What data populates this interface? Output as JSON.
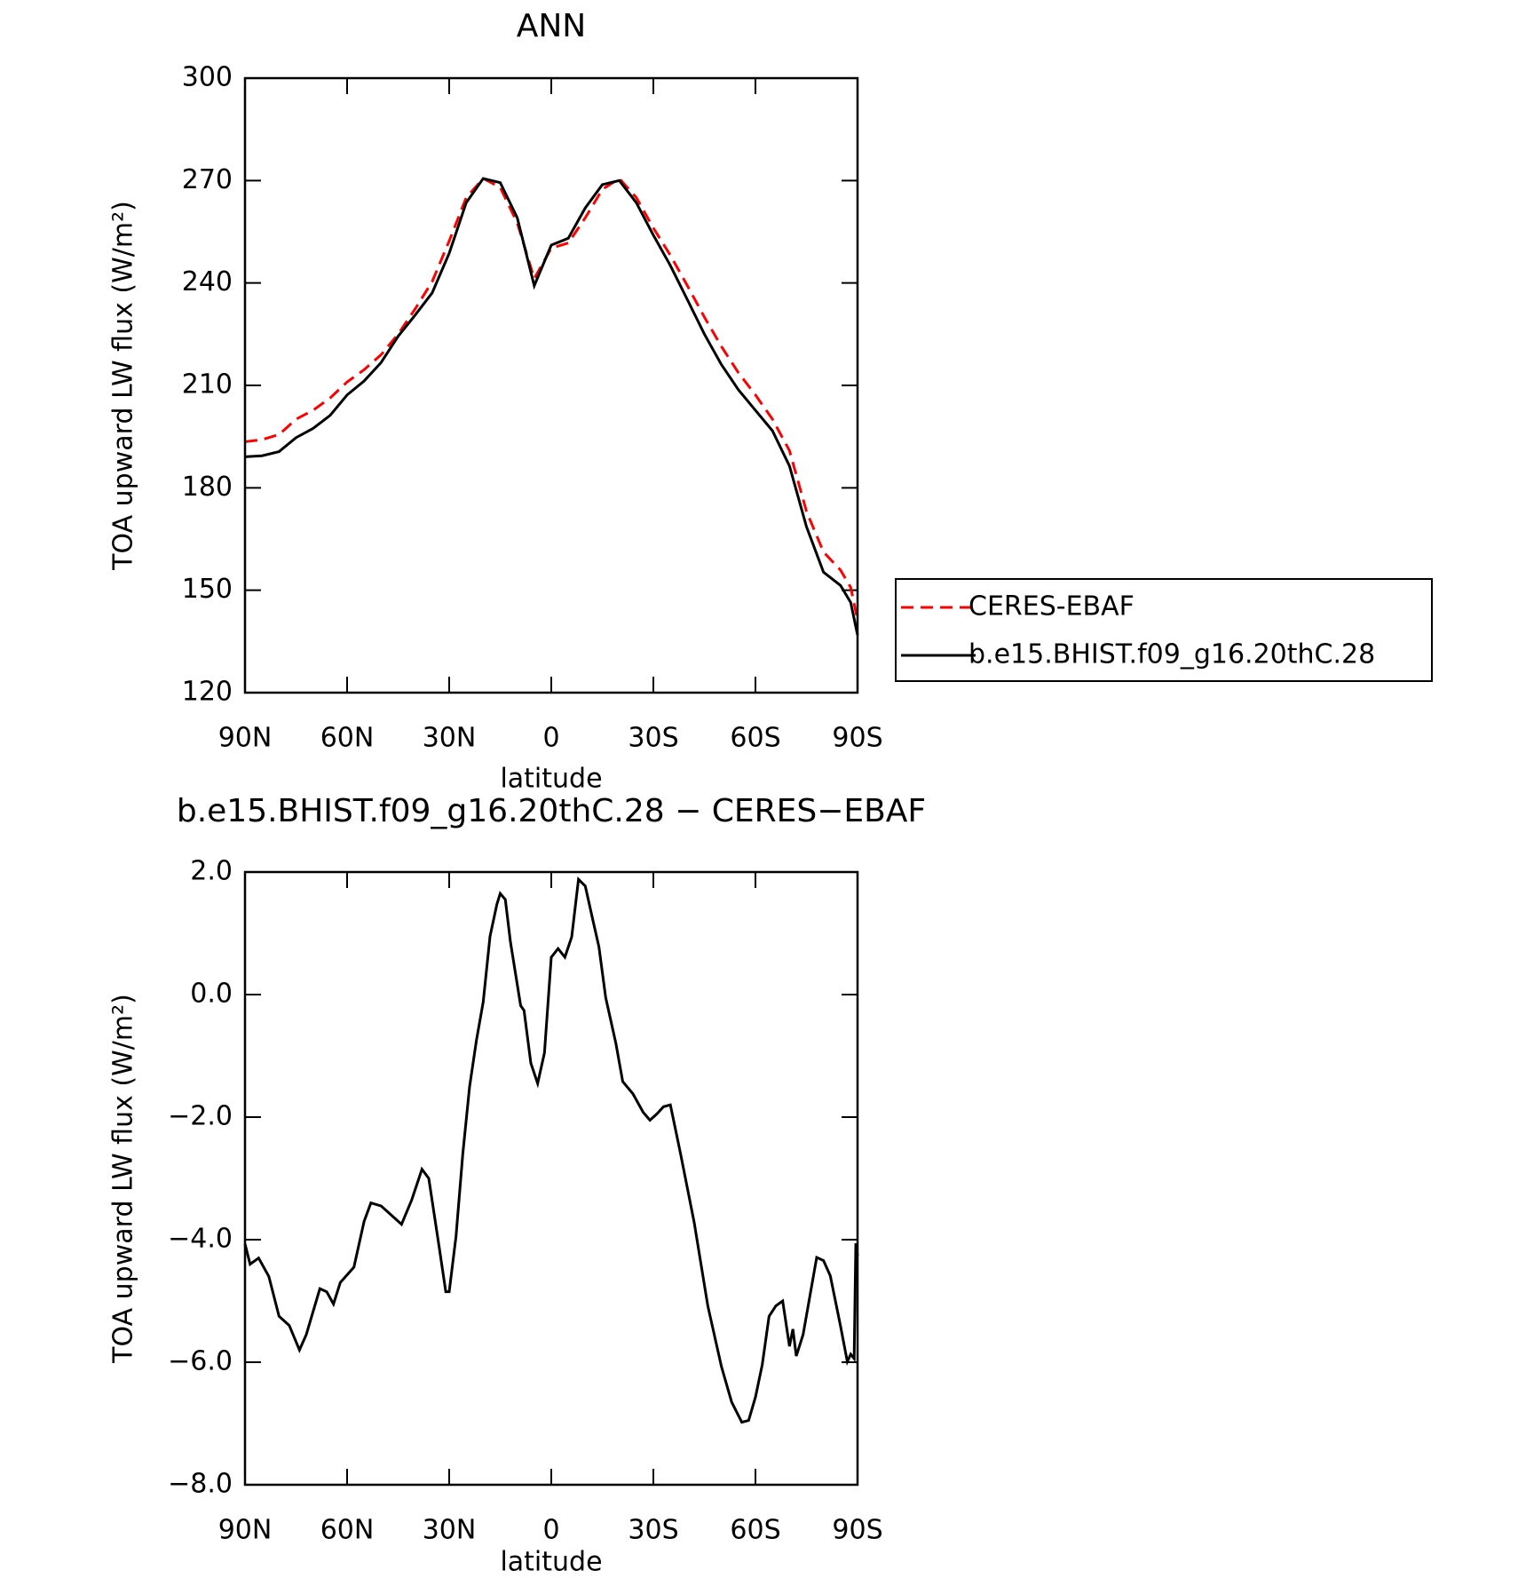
{
  "chart_data": [
    {
      "type": "line",
      "title": "ANN",
      "xlabel": "latitude",
      "ylabel": "TOA upward LW flux (W/m²)",
      "x": [
        90,
        85,
        80,
        75,
        70,
        65,
        60,
        55,
        50,
        45,
        40,
        35,
        30,
        25,
        20,
        15,
        10,
        5,
        0,
        -5,
        -10,
        -15,
        -20,
        -25,
        -30,
        -35,
        -40,
        -45,
        -50,
        -55,
        -60,
        -65,
        -70,
        -75,
        -80,
        -85,
        -88,
        -90
      ],
      "series": [
        {
          "name": "CERES-EBAF",
          "color": "#ff0000",
          "linestyle": "dashed",
          "values": [
            193.5,
            194.1,
            195.6,
            200.1,
            202.7,
            206.3,
            211.0,
            214.6,
            219.0,
            225.0,
            232.4,
            240.4,
            252.3,
            265.0,
            270.6,
            268.0,
            257.6,
            241.3,
            250.2,
            251.7,
            259.1,
            267.4,
            270.6,
            265.0,
            256.1,
            248.1,
            239.2,
            230.0,
            221.4,
            213.7,
            207.2,
            200.1,
            190.9,
            173.1,
            161.2,
            155.9,
            150.8,
            141.3
          ]
        },
        {
          "name": "b.e15.BHIST.f09_g16.20thC.28",
          "color": "#000000",
          "linestyle": "solid",
          "values": [
            189.1,
            189.4,
            190.6,
            194.7,
            197.4,
            201.2,
            207.2,
            211.3,
            216.7,
            224.4,
            230.6,
            237.1,
            248.7,
            263.5,
            270.6,
            269.4,
            259.1,
            239.2,
            251.1,
            253.1,
            262.0,
            268.8,
            270.0,
            263.5,
            254.0,
            245.1,
            235.1,
            225.0,
            216.1,
            208.7,
            202.7,
            196.7,
            186.4,
            168.6,
            155.3,
            151.4,
            146.4,
            136.9
          ]
        }
      ],
      "xlim": [
        90,
        -90
      ],
      "xticks": [
        {
          "value": 90,
          "label": "90N"
        },
        {
          "value": 60,
          "label": "60N"
        },
        {
          "value": 30,
          "label": "30N"
        },
        0,
        {
          "value": -30,
          "label": "30S"
        },
        {
          "value": -60,
          "label": "60S"
        },
        {
          "value": -90,
          "label": "90S"
        }
      ],
      "ylim": [
        120,
        300
      ],
      "yticks": [
        120,
        150,
        180,
        210,
        240,
        270,
        300
      ],
      "legend": "right"
    },
    {
      "type": "line",
      "title": "b.e15.BHIST.f09_g16.20thC.28 − CERES−EBAF",
      "xlabel": "latitude",
      "ylabel": "TOA upward LW flux (W/m²)",
      "x": [
        90,
        88.5,
        86,
        83,
        80,
        77,
        74,
        72,
        68,
        66,
        64,
        62,
        58,
        55,
        53,
        50,
        47,
        44,
        41,
        38,
        36,
        33,
        31,
        30,
        28,
        26,
        24,
        22,
        20,
        18,
        16,
        15,
        13.5,
        12,
        9,
        8,
        6,
        4,
        2,
        0,
        -2,
        -4,
        -6,
        -8,
        -10,
        -12,
        -14,
        -16,
        -19,
        -21,
        -24,
        -27,
        -29,
        -31,
        -33,
        -35,
        -38,
        -42,
        -46,
        -50,
        -53,
        -56,
        -58,
        -60,
        -62,
        -64,
        -66,
        -68,
        -70,
        -71,
        -72,
        -74,
        -76,
        -78,
        -80,
        -82,
        -85,
        -87,
        -88,
        -89,
        -89.5,
        -90
      ],
      "series": [
        {
          "name": "b.e15.BHIST.f09_g16.20thC.28 − CERES−EBAF",
          "color": "#000000",
          "linestyle": "solid",
          "values": [
            -4.07,
            -4.4,
            -4.3,
            -4.6,
            -5.25,
            -5.4,
            -5.8,
            -5.55,
            -4.8,
            -4.85,
            -5.05,
            -4.7,
            -4.45,
            -3.7,
            -3.4,
            -3.45,
            -3.6,
            -3.75,
            -3.35,
            -2.85,
            -3.0,
            -4.1,
            -4.85,
            -4.85,
            -3.95,
            -2.6,
            -1.5,
            -0.75,
            -0.12,
            0.95,
            1.47,
            1.65,
            1.55,
            0.86,
            -0.18,
            -0.26,
            -1.12,
            -1.45,
            -0.95,
            0.61,
            0.75,
            0.61,
            0.94,
            1.88,
            1.77,
            1.27,
            0.78,
            -0.05,
            -0.8,
            -1.42,
            -1.62,
            -1.92,
            -2.05,
            -1.95,
            -1.83,
            -1.8,
            -2.6,
            -3.72,
            -5.08,
            -6.07,
            -6.65,
            -6.98,
            -6.95,
            -6.57,
            -6.04,
            -5.25,
            -5.08,
            -5.0,
            -5.74,
            -5.46,
            -5.9,
            -5.55,
            -4.92,
            -4.29,
            -4.34,
            -4.59,
            -5.41,
            -5.99,
            -5.87,
            -5.94,
            -4.06,
            -4.26
          ]
        }
      ],
      "xlim": [
        90,
        -90
      ],
      "xticks": [
        {
          "value": 90,
          "label": "90N"
        },
        {
          "value": 60,
          "label": "60N"
        },
        {
          "value": 30,
          "label": "30N"
        },
        0,
        {
          "value": -30,
          "label": "30S"
        },
        {
          "value": -60,
          "label": "60S"
        },
        {
          "value": -90,
          "label": "90S"
        }
      ],
      "ylim": [
        -8,
        2
      ],
      "yticks": [
        {
          "value": -8,
          "label": "−8.0"
        },
        {
          "value": -6,
          "label": "−6.0"
        },
        {
          "value": -4,
          "label": "−4.0"
        },
        {
          "value": -2,
          "label": "−2.0"
        },
        {
          "value": 0,
          "label": "0.0"
        },
        {
          "value": 2,
          "label": "2.0"
        }
      ]
    }
  ]
}
